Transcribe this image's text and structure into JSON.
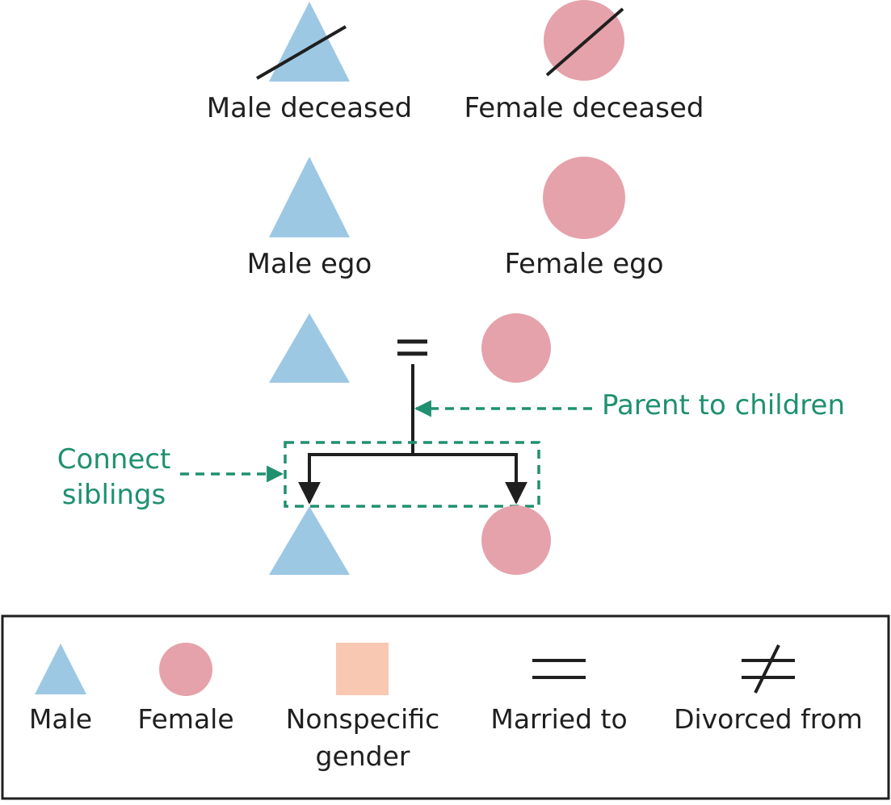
{
  "colors": {
    "male": "#9dc8e4",
    "female": "#e5a2aa",
    "nonspecific": "#f9c8b3",
    "line": "#1f1f1f",
    "annotation": "#1f9070"
  },
  "symbols": {
    "male_deceased": {
      "label": "Male deceased",
      "shape": "triangle-icon",
      "struck": true
    },
    "female_deceased": {
      "label": "Female deceased",
      "shape": "circle-icon",
      "struck": true
    },
    "male_ego": {
      "label": "Male ego",
      "shape": "triangle-icon"
    },
    "female_ego": {
      "label": "Female ego",
      "shape": "circle-icon"
    }
  },
  "family_example": {
    "married_symbol": "=",
    "parent_annotation": "Parent to children",
    "siblings_annotation": [
      "Connect",
      "siblings"
    ]
  },
  "legend": {
    "items": [
      {
        "id": "male",
        "label": [
          "Male"
        ],
        "icon": "triangle-icon"
      },
      {
        "id": "female",
        "label": [
          "Female"
        ],
        "icon": "circle-icon"
      },
      {
        "id": "nonspecific",
        "label": [
          "Nonspecific",
          "gender"
        ],
        "icon": "square-icon"
      },
      {
        "id": "married",
        "label": [
          "Married to"
        ],
        "icon": "equals-icon"
      },
      {
        "id": "divorced",
        "label": [
          "Divorced from"
        ],
        "icon": "not-equals-icon"
      }
    ]
  }
}
